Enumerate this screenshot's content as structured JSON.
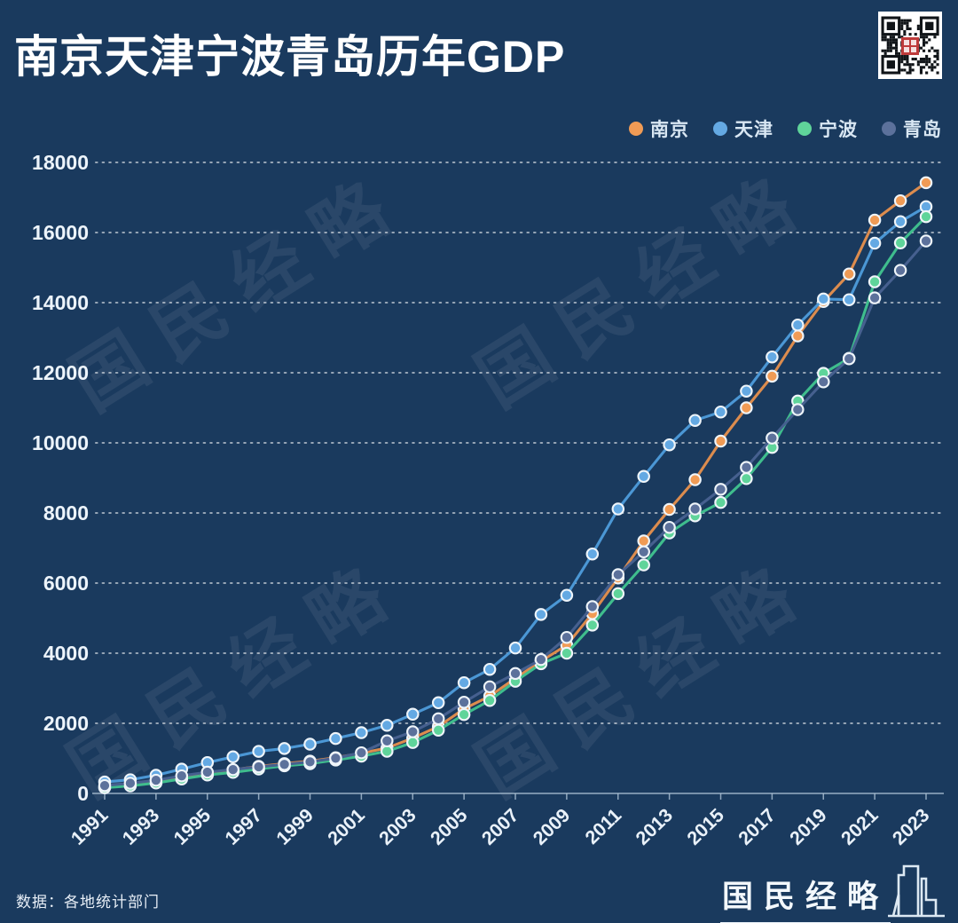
{
  "header": {
    "title": "南京天津宁波青岛历年GDP"
  },
  "watermark": {
    "text": "国民经略",
    "count": 4
  },
  "footer": {
    "source": "数据：各地统计部门",
    "brand": "国民经略"
  },
  "colors": {
    "background": "#1A3A5E",
    "title_text": "#FFFFFF",
    "axis_text": "#E9F1F9",
    "gridline": "rgba(255,255,255,0.55)",
    "qr_seal": "#BE3B3B"
  },
  "chart_data": {
    "type": "line",
    "x": [
      1991,
      1992,
      1993,
      1994,
      1995,
      1996,
      1997,
      1998,
      1999,
      2000,
      2001,
      2002,
      2003,
      2004,
      2005,
      2006,
      2007,
      2008,
      2009,
      2010,
      2011,
      2012,
      2013,
      2014,
      2015,
      2016,
      2017,
      2018,
      2019,
      2020,
      2021,
      2022,
      2023
    ],
    "x_tick_labels": [
      "1991",
      "1993",
      "1995",
      "1997",
      "1999",
      "2001",
      "2003",
      "2005",
      "2007",
      "2009",
      "2011",
      "2013",
      "2015",
      "2017",
      "2019",
      "2021",
      "2023"
    ],
    "y_ticks": [
      0,
      2000,
      4000,
      6000,
      8000,
      10000,
      12000,
      14000,
      16000,
      18000
    ],
    "ylim": [
      0,
      18000
    ],
    "xlabel": "",
    "ylabel": "",
    "grid": "dotted-horizontal",
    "legend_position": "top-right",
    "series": [
      {
        "key": "nanjing",
        "name": "南京",
        "line_color": "#DC8C4E",
        "marker_color": "#F09B55",
        "values": [
          184,
          258,
          354,
          463,
          576,
          676,
          772,
          851,
          921,
          1021,
          1150,
          1295,
          1576,
          1910,
          2413,
          2774,
          3284,
          3775,
          4230,
          5131,
          6146,
          7202,
          8100,
          8950,
          10050,
          11000,
          11900,
          13050,
          14030,
          14818,
          16355,
          16907,
          17421
        ]
      },
      {
        "key": "tianjin",
        "name": "天津",
        "line_color": "#4B97D5",
        "marker_color": "#64A9E3",
        "values": [
          327,
          391,
          520,
          693,
          880,
          1043,
          1200,
          1281,
          1406,
          1566,
          1734,
          1943,
          2257,
          2587,
          3160,
          3538,
          4150,
          5104,
          5654,
          6831,
          8113,
          9043,
          9945,
          10641,
          10880,
          11477,
          12451,
          13363,
          14104,
          14084,
          15695,
          16311,
          16737
        ]
      },
      {
        "key": "ningbo",
        "name": "宁波",
        "line_color": "#3FBD8D",
        "marker_color": "#5FD49A",
        "values": [
          163,
          215,
          298,
          413,
          527,
          600,
          697,
          787,
          849,
          951,
          1064,
          1203,
          1453,
          1802,
          2250,
          2650,
          3200,
          3700,
          4000,
          4800,
          5700,
          6520,
          7430,
          7920,
          8300,
          8980,
          9870,
          11193,
          11985,
          12409,
          14595,
          15704,
          16453
        ]
      },
      {
        "key": "qingdao",
        "name": "青岛",
        "line_color": "#46608F",
        "marker_color": "#5C719B",
        "values": [
          226,
          291,
          376,
          501,
          608,
          680,
          760,
          828,
          901,
          1005,
          1160,
          1500,
          1760,
          2130,
          2600,
          3040,
          3420,
          3820,
          4450,
          5330,
          6240,
          6890,
          7589,
          8113,
          8674,
          9301,
          10137,
          10949,
          11741,
          12401,
          14136,
          14921,
          15760
        ]
      }
    ]
  }
}
